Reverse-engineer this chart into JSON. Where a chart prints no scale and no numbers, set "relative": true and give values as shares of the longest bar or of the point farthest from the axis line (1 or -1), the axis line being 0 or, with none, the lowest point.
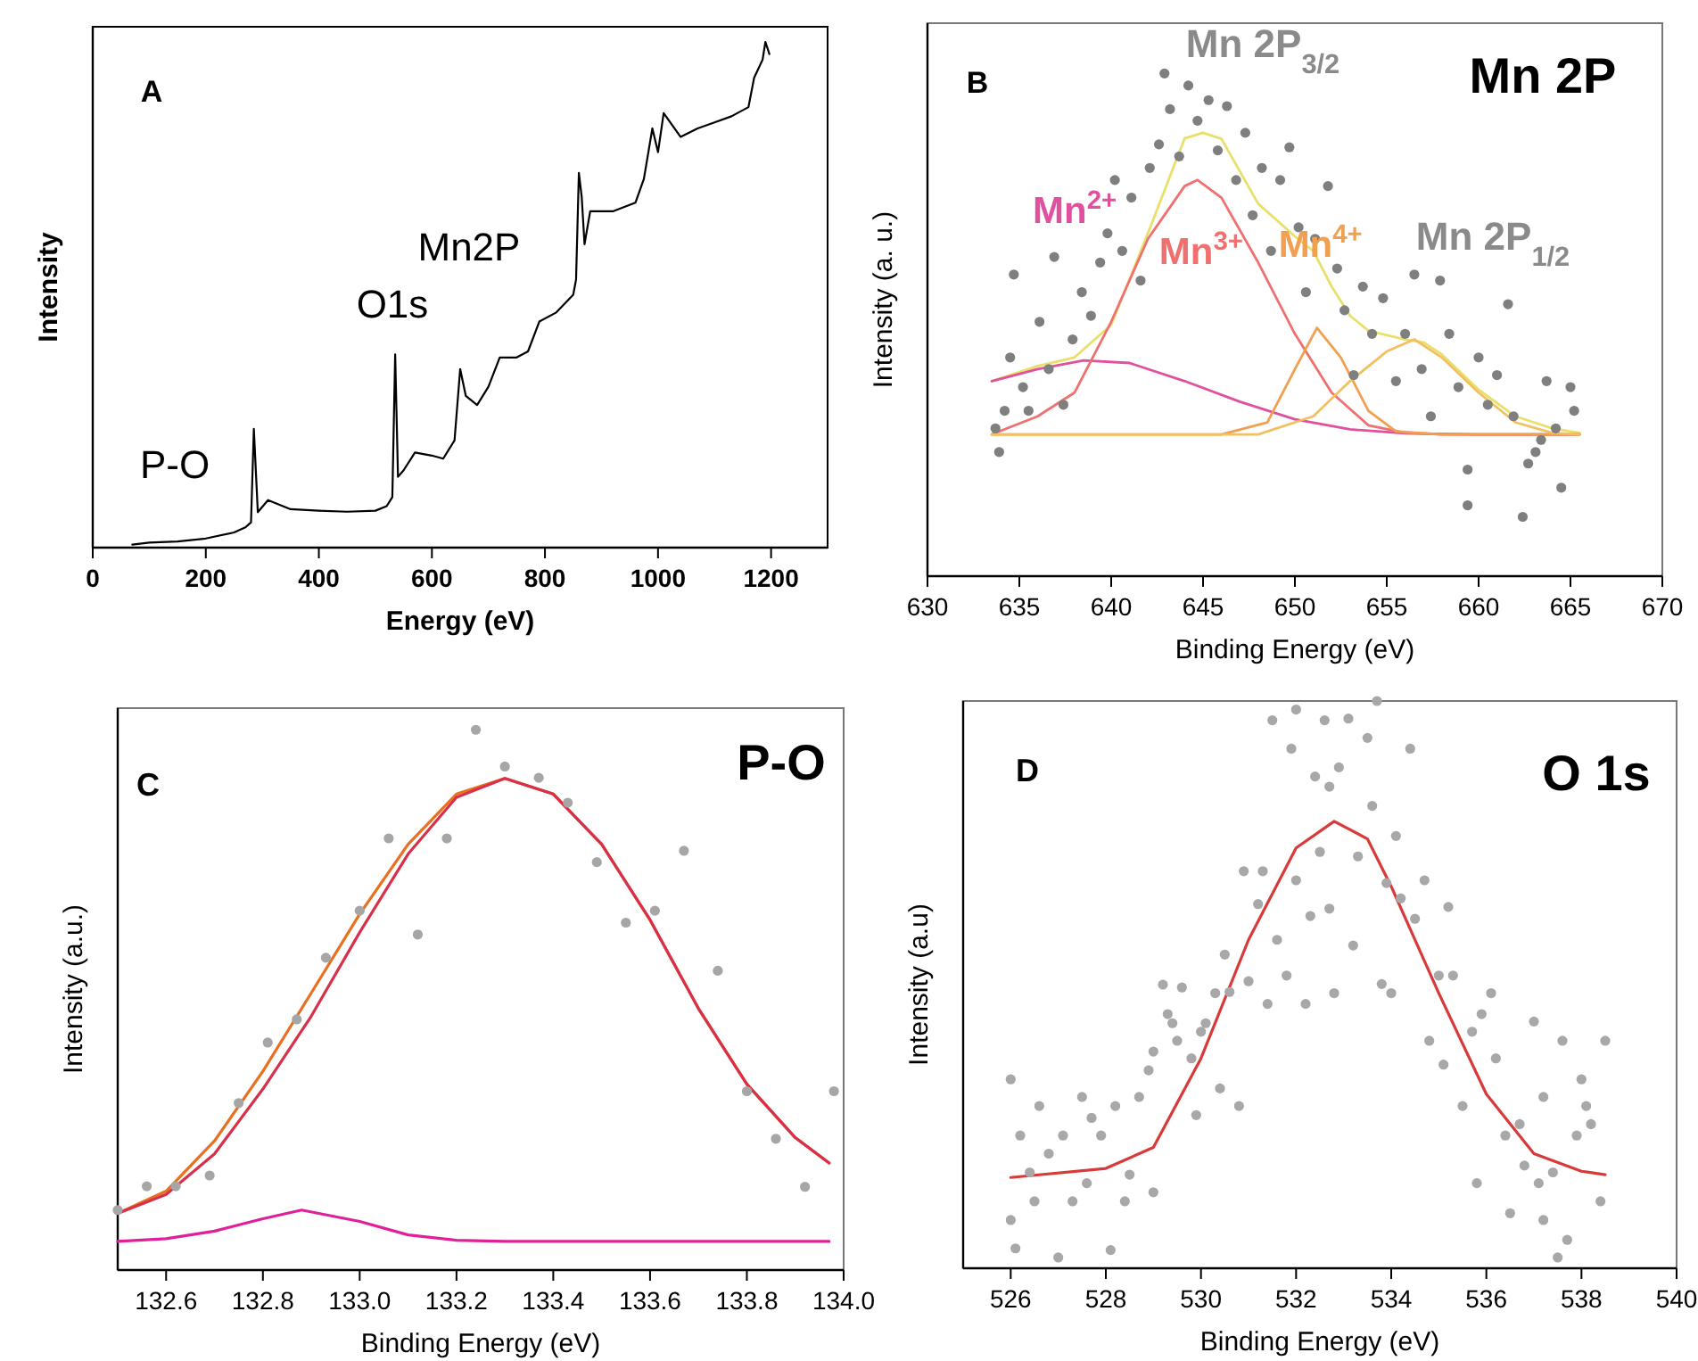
{
  "chart_data": [
    {
      "type": "line",
      "xlabel": "Energy (eV)",
      "ylabel": "Intensity",
      "relative": true,
      "xlim": [
        0,
        1300
      ],
      "xticks": [
        0,
        200,
        400,
        600,
        800,
        1000,
        1200
      ],
      "annotations": [
        "A",
        "P-O",
        "O1s",
        "Mn2P"
      ],
      "series": [
        {
          "color": "#000000",
          "x": [
            70,
            100,
            150,
            200,
            250,
            270,
            280,
            285,
            292,
            310,
            350,
            400,
            450,
            500,
            520,
            530,
            535,
            540,
            550,
            570,
            600,
            620,
            640,
            650,
            660,
            680,
            700,
            720,
            750,
            770,
            790,
            820,
            850,
            855,
            860,
            865,
            870,
            880,
            920,
            960,
            975,
            990,
            1000,
            1010,
            1040,
            1070,
            1100,
            1130,
            1160,
            1170,
            1185,
            1190,
            1197
          ],
          "values": [
            0.006,
            0.01,
            0.012,
            0.018,
            0.03,
            0.04,
            0.05,
            0.235,
            0.07,
            0.094,
            0.076,
            0.073,
            0.071,
            0.073,
            0.082,
            0.1,
            0.382,
            0.14,
            0.153,
            0.188,
            0.182,
            0.176,
            0.212,
            0.353,
            0.3,
            0.282,
            0.318,
            0.376,
            0.376,
            0.388,
            0.447,
            0.465,
            0.5,
            0.53,
            0.741,
            0.694,
            0.6,
            0.665,
            0.665,
            0.682,
            0.729,
            0.829,
            0.782,
            0.859,
            0.812,
            0.829,
            0.841,
            0.853,
            0.871,
            0.929,
            0.965,
            1.0,
            0.976
          ]
        }
      ]
    },
    {
      "type": "scatter",
      "title": "Mn 2P",
      "xlabel": "Binding Energy (eV)",
      "ylabel": "Intensity (a. u.)",
      "relative": true,
      "xlim": [
        630,
        670
      ],
      "xticks": [
        630,
        635,
        640,
        645,
        650,
        655,
        660,
        665,
        670
      ],
      "annotations": [
        "B",
        "Mn 2P$_{3/2}$",
        "Mn 2P$_{1/2}$"
      ],
      "series": [
        {
          "marker": "circle",
          "color": "#7f7f7f",
          "x": [
            633.9,
            633.7,
            634.2,
            634.5,
            634.7,
            635.2,
            635.5,
            636.1,
            636.6,
            636.9,
            637.4,
            637.9,
            638.4,
            638.9,
            639.4,
            639.8,
            640.2,
            640.6,
            641.1,
            641.6,
            642.1,
            642.6,
            642.9,
            643.2,
            643.7,
            644.2,
            644.7,
            645.3,
            645.8,
            646.3,
            646.8,
            647.3,
            647.7,
            648.2,
            648.7,
            649.2,
            649.7,
            650.2,
            650.6,
            651.1,
            651.8,
            652.3,
            652.7,
            653.2,
            653.7,
            654.2,
            654.8,
            655.5,
            656.0,
            656.5,
            656.9,
            657.4,
            657.9,
            658.4,
            658.9,
            659.4,
            659.4,
            660.0,
            660.5,
            661.0,
            661.6,
            661.9,
            662.4,
            662.7,
            663.1,
            663.4,
            663.7,
            664.2,
            664.5,
            665.0,
            665.2
          ],
          "values": [
            0.247,
            0.294,
            0.329,
            0.435,
            0.6,
            0.376,
            0.329,
            0.506,
            0.412,
            0.635,
            0.341,
            0.471,
            0.565,
            0.518,
            0.624,
            0.682,
            0.788,
            0.647,
            0.753,
            0.588,
            0.812,
            0.859,
            1.0,
            0.929,
            0.835,
            0.976,
            0.906,
            0.947,
            0.847,
            0.935,
            0.788,
            0.882,
            0.718,
            0.812,
            0.647,
            0.788,
            0.853,
            0.694,
            0.565,
            0.671,
            0.776,
            0.612,
            0.529,
            0.4,
            0.576,
            0.482,
            0.553,
            0.388,
            0.482,
            0.6,
            0.412,
            0.318,
            0.588,
            0.482,
            0.376,
            0.212,
            0.141,
            0.435,
            0.341,
            0.4,
            0.541,
            0.318,
            0.118,
            0.224,
            0.247,
            0.271,
            0.388,
            0.294,
            0.176,
            0.376,
            0.329
          ]
        },
        {
          "type": "line",
          "color": "#e8e06a",
          "x": [
            633.5,
            636,
            638,
            640,
            642,
            644,
            645,
            646,
            648,
            650,
            651,
            652,
            653,
            654,
            656,
            657,
            658,
            660,
            662,
            664,
            665.5
          ],
          "values": [
            0.388,
            0.418,
            0.435,
            0.5,
            0.682,
            0.871,
            0.882,
            0.87,
            0.741,
            0.676,
            0.647,
            0.576,
            0.518,
            0.488,
            0.471,
            0.465,
            0.441,
            0.371,
            0.318,
            0.294,
            0.285
          ]
        },
        {
          "type": "line",
          "name": "Mn$^{2+}$",
          "color": "#e0509f",
          "x": [
            633.5,
            636,
            638.5,
            641,
            644,
            647,
            650,
            653,
            656,
            660,
            665.5
          ],
          "values": [
            0.388,
            0.412,
            0.429,
            0.424,
            0.388,
            0.347,
            0.312,
            0.292,
            0.284,
            0.282,
            0.282
          ]
        },
        {
          "type": "line",
          "name": "Mn$^{3+}$",
          "color": "#f07070",
          "x": [
            633.5,
            636,
            638,
            640,
            642,
            644,
            644.7,
            646,
            648,
            650,
            652,
            654,
            656,
            658,
            665.5
          ],
          "values": [
            0.282,
            0.318,
            0.365,
            0.506,
            0.671,
            0.776,
            0.788,
            0.753,
            0.624,
            0.482,
            0.365,
            0.3,
            0.285,
            0.282,
            0.282
          ]
        },
        {
          "type": "line",
          "name": "Mn$^{4+}$",
          "color": "#f0a050",
          "x": [
            633.5,
            646,
            648.5,
            650,
            651.2,
            652.5,
            654,
            655.5,
            658,
            665.5
          ],
          "values": [
            0.282,
            0.282,
            0.306,
            0.412,
            0.494,
            0.435,
            0.329,
            0.288,
            0.282,
            0.282
          ]
        },
        {
          "type": "line",
          "color": "#f2c060",
          "x": [
            633.5,
            648,
            651,
            653,
            655,
            656.5,
            658,
            660,
            662,
            664,
            665.5
          ],
          "values": [
            0.282,
            0.282,
            0.318,
            0.388,
            0.447,
            0.471,
            0.435,
            0.365,
            0.306,
            0.285,
            0.282
          ]
        }
      ]
    },
    {
      "type": "scatter",
      "title": "P-O",
      "xlabel": "Binding Energy (eV)",
      "ylabel": "Intensity (a.u.)",
      "relative": true,
      "xlim": [
        132.5,
        134.0
      ],
      "xticks": [
        132.6,
        132.8,
        {
          "value": 133,
          "label": "133.0"
        },
        133.2,
        133.4,
        133.6,
        133.8,
        {
          "value": 134,
          "label": "134.0"
        }
      ],
      "annotations": [
        "C"
      ],
      "series": [
        {
          "marker": "circle",
          "color": "#a6a6a6",
          "x": [
            132.5,
            132.56,
            132.62,
            132.69,
            132.75,
            132.81,
            132.87,
            132.93,
            133.0,
            133.06,
            133.12,
            133.18,
            133.24,
            133.3,
            133.37,
            133.43,
            133.49,
            133.55,
            133.61,
            133.67,
            133.74,
            133.8,
            133.86,
            133.92,
            133.98
          ],
          "values": [
            0.111,
            0.155,
            0.155,
            0.175,
            0.309,
            0.421,
            0.464,
            0.578,
            0.665,
            0.799,
            0.621,
            0.799,
            1.0,
            0.932,
            0.911,
            0.865,
            0.755,
            0.643,
            0.665,
            0.776,
            0.554,
            0.331,
            0.243,
            0.154,
            0.331
          ]
        },
        {
          "type": "line",
          "color": "#e8701f",
          "x": [
            132.5,
            132.6,
            132.7,
            132.8,
            132.9,
            133.0,
            133.1,
            133.2,
            133.3,
            133.4,
            133.5,
            133.6,
            133.7,
            133.8,
            133.9,
            133.97
          ],
          "values": [
            0.105,
            0.146,
            0.239,
            0.368,
            0.513,
            0.659,
            0.788,
            0.881,
            0.91,
            0.881,
            0.788,
            0.648,
            0.484,
            0.344,
            0.245,
            0.198
          ]
        },
        {
          "type": "line",
          "color": "#d8304a",
          "x": [
            132.5,
            132.6,
            132.7,
            132.8,
            132.9,
            133.0,
            133.1,
            133.2,
            133.3,
            133.4,
            133.5,
            133.6,
            133.7,
            133.8,
            133.9,
            133.97
          ],
          "values": [
            0.105,
            0.14,
            0.215,
            0.335,
            0.47,
            0.625,
            0.77,
            0.875,
            0.91,
            0.881,
            0.788,
            0.648,
            0.484,
            0.344,
            0.245,
            0.198
          ]
        },
        {
          "type": "line",
          "color": "#e0209a",
          "x": [
            132.5,
            132.6,
            132.7,
            132.8,
            132.88,
            133.0,
            133.1,
            133.2,
            133.3,
            133.97
          ],
          "values": [
            0.053,
            0.058,
            0.072,
            0.095,
            0.111,
            0.09,
            0.065,
            0.055,
            0.053,
            0.053
          ]
        }
      ]
    },
    {
      "type": "scatter",
      "title": "O 1s",
      "xlabel": "Binding Energy (eV)",
      "ylabel": "Intensity (a.u)",
      "relative": true,
      "xlim": [
        525,
        540
      ],
      "xticks": [
        526,
        528,
        530,
        532,
        534,
        536,
        538,
        540
      ],
      "annotations": [
        "D"
      ],
      "series": [
        {
          "marker": "circle",
          "color": "#a8a8a8",
          "x": [
            526.0,
            526.0,
            526.1,
            526.2,
            526.4,
            526.5,
            526.6,
            526.8,
            527.0,
            527.1,
            527.3,
            527.5,
            527.6,
            527.7,
            527.9,
            528.1,
            528.2,
            528.4,
            528.5,
            528.7,
            528.9,
            529.0,
            529.0,
            529.2,
            529.3,
            529.4,
            529.5,
            529.6,
            529.8,
            529.9,
            530.0,
            530.1,
            530.3,
            530.4,
            530.5,
            530.6,
            530.8,
            530.9,
            531.0,
            531.2,
            531.3,
            531.4,
            531.5,
            531.6,
            531.8,
            531.9,
            532.0,
            532.0,
            532.2,
            532.3,
            532.4,
            532.5,
            532.6,
            532.7,
            532.7,
            532.8,
            532.9,
            533.1,
            533.2,
            533.3,
            533.5,
            533.6,
            533.7,
            533.8,
            533.9,
            534.0,
            534.1,
            534.2,
            534.4,
            534.5,
            534.7,
            534.8,
            535.0,
            535.1,
            535.2,
            535.3,
            535.5,
            535.7,
            535.8,
            535.9,
            536.1,
            536.2,
            536.4,
            536.5,
            536.7,
            536.8,
            537.0,
            537.1,
            537.2,
            537.2,
            537.4,
            537.5,
            537.6,
            537.7,
            537.9,
            538.0,
            538.1,
            538.2,
            538.4,
            538.5
          ],
          "values": [
            0.333,
            0.085,
            0.035,
            0.234,
            0.169,
            0.118,
            0.286,
            0.202,
            0.019,
            0.234,
            0.118,
            0.302,
            0.15,
            0.265,
            0.234,
            0.032,
            0.286,
            0.118,
            0.165,
            0.302,
            0.349,
            0.382,
            0.134,
            0.5,
            0.448,
            0.432,
            0.401,
            0.495,
            0.37,
            0.27,
            0.417,
            0.432,
            0.485,
            0.317,
            0.553,
            0.487,
            0.286,
            0.7,
            0.506,
            0.642,
            0.7,
            0.466,
            0.966,
            0.579,
            0.516,
            0.916,
            0.684,
            0.985,
            0.466,
            0.621,
            0.867,
            0.734,
            0.966,
            0.849,
            0.634,
            0.485,
            0.883,
            0.969,
            0.569,
            0.726,
            0.935,
            0.815,
            1.0,
            0.501,
            0.679,
            0.485,
            0.762,
            0.652,
            0.916,
            0.616,
            0.684,
            0.401,
            0.516,
            0.359,
            0.637,
            0.516,
            0.286,
            0.417,
            0.15,
            0.448,
            0.485,
            0.37,
            0.234,
            0.097,
            0.254,
            0.181,
            0.435,
            0.15,
            0.302,
            0.085,
            0.169,
            0.019,
            0.401,
            0.05,
            0.234,
            0.333,
            0.286,
            0.254,
            0.118,
            0.401
          ]
        },
        {
          "type": "line",
          "color": "#d83a3a",
          "x": [
            526,
            528,
            529,
            530,
            531,
            532,
            532.8,
            533.5,
            534,
            535,
            536,
            537,
            538,
            538.5
          ],
          "values": [
            0.16,
            0.176,
            0.213,
            0.37,
            0.579,
            0.741,
            0.788,
            0.757,
            0.673,
            0.485,
            0.307,
            0.202,
            0.171,
            0.165
          ]
        }
      ]
    }
  ]
}
